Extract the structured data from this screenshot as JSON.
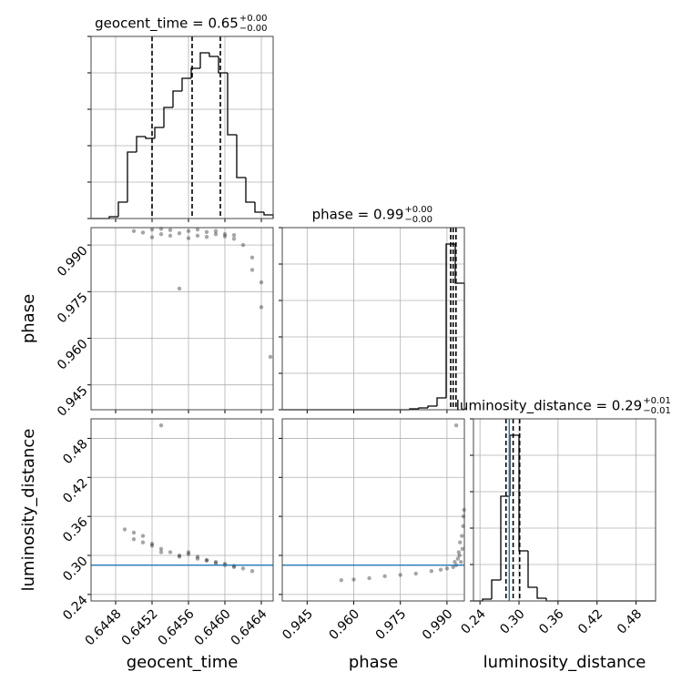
{
  "chart_data": [
    {
      "type": "histogram",
      "title": "geocent_time = 0.65",
      "title_upper": "+0.00",
      "title_lower": "−0.00",
      "bins": [
        0.64453,
        0.64463,
        0.64473,
        0.64483,
        0.64493,
        0.64503,
        0.64513,
        0.64523,
        0.64533,
        0.64543,
        0.64553,
        0.64563,
        0.64573,
        0.64583,
        0.64593,
        0.64603,
        0.64613,
        0.64623,
        0.64633,
        0.64643,
        0.64653
      ],
      "counts": [
        0,
        0,
        2,
        18,
        73,
        90,
        88,
        100,
        122,
        140,
        154,
        165,
        182,
        178,
        160,
        92,
        45,
        18,
        7,
        4
      ],
      "quantiles": [
        0.6452,
        0.64564,
        0.64595
      ],
      "xlim": [
        0.64453,
        0.64653
      ],
      "ylim": [
        0,
        200
      ],
      "xticks": [
        0.6448,
        0.6452,
        0.6456,
        {
          "value": 0.646,
          "label": "0.6460"
        },
        0.6464
      ],
      "yticks": [
        0,
        40,
        80,
        120,
        160,
        200
      ],
      "xtick_labels": false,
      "ytick_labels": false,
      "color": "#000000",
      "grid": true
    },
    {
      "type": "scatter",
      "ylabel": "phase",
      "x": [
        0.645,
        0.6451,
        0.6452,
        0.6453,
        0.6454,
        0.6455,
        0.6456,
        0.6457,
        0.6458,
        0.6459,
        0.646,
        0.6461,
        0.6452,
        0.6454,
        0.6456,
        0.6458,
        0.646,
        0.6453,
        0.6457,
        0.6459,
        0.6461,
        0.6462,
        0.6463,
        0.6463,
        0.6464,
        0.6464,
        0.6465,
        0.6455
      ],
      "y": [
        0.9945,
        0.994,
        0.995,
        0.9935,
        0.9948,
        0.9938,
        0.9945,
        0.993,
        0.9942,
        0.9935,
        0.9928,
        0.9932,
        0.9925,
        0.993,
        0.9922,
        0.9926,
        0.9935,
        0.9952,
        0.995,
        0.9945,
        0.992,
        0.99,
        0.986,
        0.982,
        0.978,
        0.97,
        0.954,
        0.976
      ],
      "xlim": [
        0.64453,
        0.64653
      ],
      "ylim": [
        0.937,
        0.9956
      ],
      "xticks": [
        0.6448,
        0.6452,
        0.6456,
        {
          "value": 0.646,
          "label": "0.6460"
        },
        0.6464
      ],
      "yticks": [
        0.945,
        {
          "value": 0.96,
          "label": "0.960"
        },
        0.975,
        {
          "value": 0.99,
          "label": "0.990"
        }
      ],
      "xtick_labels": false,
      "ytick_labels": true,
      "color": "#000000",
      "grid": true
    },
    {
      "type": "histogram",
      "title": "phase = 0.99",
      "title_upper": "+0.00",
      "title_lower": "−0.00",
      "bins": [
        0.937,
        0.93993,
        0.94286,
        0.94579,
        0.94872,
        0.95165,
        0.95458,
        0.95751,
        0.96044,
        0.96337,
        0.9663,
        0.96923,
        0.97216,
        0.97509,
        0.97802,
        0.98095,
        0.98388,
        0.98681,
        0.98974,
        0.99267,
        0.9956
      ],
      "counts": [
        0,
        0,
        0,
        0,
        0,
        0,
        0,
        0,
        0,
        0,
        0,
        0,
        0,
        0,
        1,
        2,
        4,
        13,
        182,
        139
      ],
      "quantiles": [
        0.9912,
        0.992,
        0.9929
      ],
      "xlim": [
        0.937,
        0.9956
      ],
      "ylim": [
        0,
        200
      ],
      "xticks": [
        0.945,
        {
          "value": 0.96,
          "label": "0.960"
        },
        0.975,
        {
          "value": 0.99,
          "label": "0.990"
        }
      ],
      "yticks": [
        0,
        40,
        80,
        120,
        160,
        200
      ],
      "xtick_labels": false,
      "ytick_labels": false,
      "color": "#000000",
      "grid": true
    },
    {
      "type": "scatter",
      "xlabel": "geocent_time",
      "ylabel": "luminosity_distance",
      "x": [
        0.645,
        0.645,
        0.6451,
        0.6452,
        0.6453,
        0.6454,
        0.6455,
        0.6456,
        0.6457,
        0.6458,
        0.6459,
        0.646,
        0.6461,
        0.6462,
        0.6463,
        0.6451,
        0.6453,
        0.6455,
        0.6457,
        0.6459,
        0.6461,
        0.6449,
        0.6452,
        0.6456,
        0.6458,
        0.646,
        0.6453
      ],
      "y": [
        0.335,
        0.325,
        0.32,
        0.315,
        0.31,
        0.305,
        0.3,
        0.302,
        0.298,
        0.292,
        0.29,
        0.285,
        0.282,
        0.28,
        0.276,
        0.33,
        0.305,
        0.298,
        0.295,
        0.288,
        0.284,
        0.34,
        0.318,
        0.305,
        0.293,
        0.287,
        0.5
      ],
      "truth_y": 0.285,
      "truth_color": "#1f77b4",
      "xlim": [
        0.64453,
        0.64653
      ],
      "ylim": [
        0.23,
        0.51
      ],
      "xticks": [
        0.6448,
        0.6452,
        0.6456,
        {
          "value": 0.646,
          "label": "0.6460"
        },
        0.6464
      ],
      "yticks": [
        0.24,
        {
          "value": 0.3,
          "label": "0.30"
        },
        0.36,
        0.42,
        0.48
      ],
      "xtick_labels": true,
      "ytick_labels": true,
      "color": "#000000",
      "grid": true
    },
    {
      "type": "scatter",
      "xlabel": "phase",
      "x": [
        0.994,
        0.9945,
        0.995,
        0.9935,
        0.993,
        0.9942,
        0.9948,
        0.9925,
        0.9952,
        0.9938,
        0.992,
        0.99,
        0.988,
        0.985,
        0.98,
        0.975,
        0.97,
        0.965,
        0.96,
        0.956,
        0.9953,
        0.9955,
        0.993
      ],
      "y": [
        0.3,
        0.29,
        0.31,
        0.295,
        0.285,
        0.32,
        0.33,
        0.29,
        0.345,
        0.305,
        0.282,
        0.28,
        0.278,
        0.276,
        0.272,
        0.27,
        0.268,
        0.265,
        0.263,
        0.262,
        0.36,
        0.37,
        0.5
      ],
      "truth_y": 0.285,
      "truth_color": "#1f77b4",
      "xlim": [
        0.937,
        0.9956
      ],
      "ylim": [
        0.23,
        0.51
      ],
      "xticks": [
        0.945,
        {
          "value": 0.96,
          "label": "0.960"
        },
        0.975,
        {
          "value": 0.99,
          "label": "0.990"
        }
      ],
      "yticks": [
        0.24,
        {
          "value": 0.3,
          "label": "0.30"
        },
        0.36,
        0.42,
        0.48
      ],
      "xtick_labels": true,
      "ytick_labels": false,
      "color": "#000000",
      "grid": true
    },
    {
      "type": "histogram",
      "title": "luminosity_distance = 0.29",
      "title_upper": "+0.01",
      "title_lower": "−0.01",
      "xlabel": "luminosity_distance",
      "bins": [
        0.23,
        0.244,
        0.258,
        0.272,
        0.286,
        0.3,
        0.314,
        0.328,
        0.342,
        0.356,
        0.37,
        0.384,
        0.398,
        0.412,
        0.426,
        0.44,
        0.454,
        0.468,
        0.482,
        0.496,
        0.51
      ],
      "counts": [
        0,
        2,
        23,
        115,
        182,
        55,
        15,
        3,
        0,
        0,
        0,
        0,
        0,
        0,
        0,
        0,
        0,
        0,
        0,
        0
      ],
      "quantiles": [
        0.28,
        0.291,
        0.301
      ],
      "truth_x": 0.285,
      "truth_color": "#1f77b4",
      "xlim": [
        0.23,
        0.51
      ],
      "ylim": [
        0,
        200
      ],
      "xticks": [
        0.24,
        {
          "value": 0.3,
          "label": "0.30"
        },
        0.36,
        0.42,
        0.48
      ],
      "yticks": [
        0,
        40,
        80,
        120,
        160,
        200
      ],
      "xtick_labels": true,
      "ytick_labels": false,
      "color": "#000000",
      "grid": true
    }
  ]
}
